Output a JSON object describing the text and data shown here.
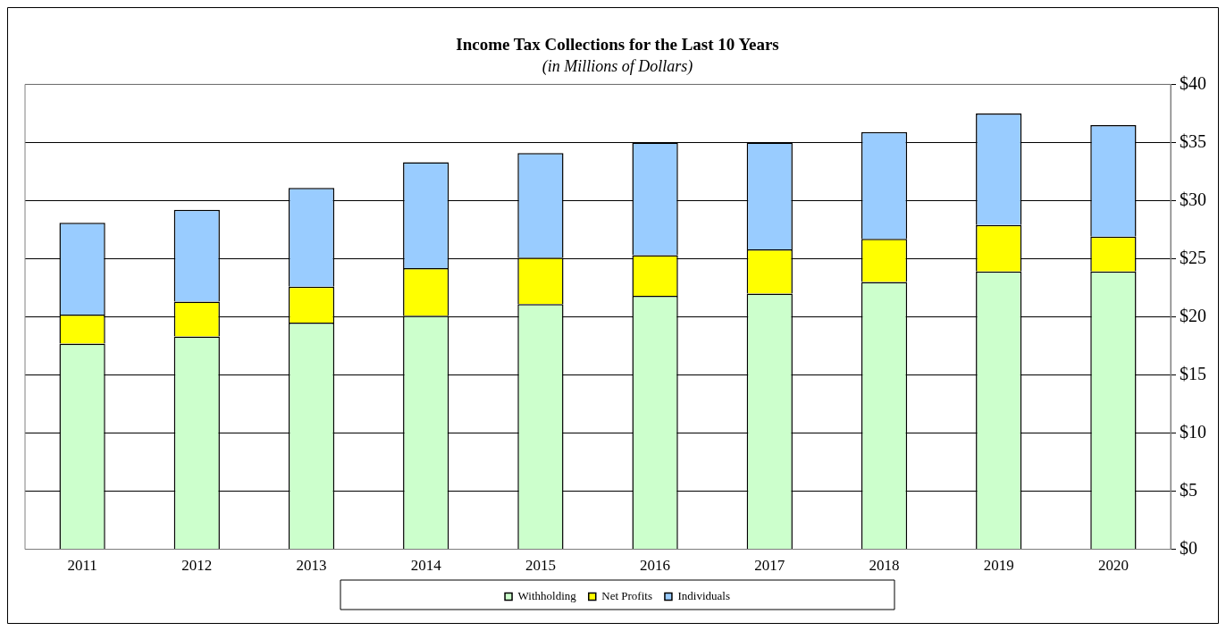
{
  "chart_data": {
    "type": "bar",
    "title": "Income Tax Collections for the Last 10 Years",
    "subtitle": "(in Millions of Dollars)",
    "categories": [
      "2011",
      "2012",
      "2013",
      "2014",
      "2015",
      "2016",
      "2017",
      "2018",
      "2019",
      "2020"
    ],
    "stacked": true,
    "series": [
      {
        "name": "Withholding",
        "color": "#ccffcc",
        "values": [
          17.7,
          18.3,
          19.5,
          20.1,
          21.1,
          21.8,
          22.0,
          23.0,
          23.9,
          23.9
        ]
      },
      {
        "name": "Net Profits",
        "color": "#ffff00",
        "values": [
          2.5,
          3.0,
          3.1,
          4.1,
          4.0,
          3.5,
          3.8,
          3.7,
          4.0,
          3.0
        ]
      },
      {
        "name": "Individuals",
        "color": "#99ccff",
        "values": [
          7.9,
          7.9,
          8.5,
          9.1,
          9.0,
          9.7,
          9.2,
          9.2,
          9.6,
          9.6
        ]
      }
    ],
    "ylim": [
      0,
      40
    ],
    "yticks": [
      {
        "value": 0,
        "label": "$0"
      },
      {
        "value": 5,
        "label": "$5"
      },
      {
        "value": 10,
        "label": "$10"
      },
      {
        "value": 15,
        "label": "$15"
      },
      {
        "value": 20,
        "label": "$20"
      },
      {
        "value": 25,
        "label": "$25"
      },
      {
        "value": 30,
        "label": "$30"
      },
      {
        "value": 35,
        "label": "$35"
      },
      {
        "value": 40,
        "label": "$40"
      }
    ],
    "grid": "y",
    "legend": "bottom"
  }
}
